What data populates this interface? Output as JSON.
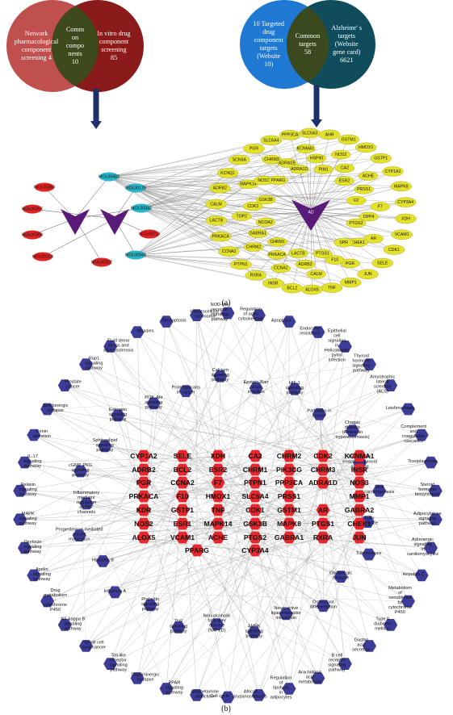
{
  "venn_left": {
    "left": [
      "Network",
      "pharmacological",
      "component",
      "screening 4"
    ],
    "middle": [
      "Comm",
      "on",
      "compo",
      "nents",
      "10"
    ],
    "right": [
      "In vitro drug",
      "component",
      "screening",
      "85"
    ],
    "colors": {
      "left": "#c0504d",
      "right": "#8b1a1a",
      "overlap": "#3e4a1c"
    }
  },
  "venn_right": {
    "left": [
      "10 Targeted",
      "drug",
      "component",
      "targets",
      "(Website",
      "10)"
    ],
    "middle": [
      "Common",
      "targets",
      "58"
    ],
    "right": [
      "Alzheimr' s",
      "targets",
      "(Website",
      "gene card)",
      "6621"
    ],
    "colors": {
      "left": "#1f78d1",
      "right": "#0f4c5c",
      "overlap": "#3b4a1e"
    }
  },
  "panel_a": {
    "label": "(a)",
    "mol_red": [
      {
        "label": "MOL00358"
      },
      {
        "label": "MOL00357"
      },
      {
        "label": "MOL00368"
      },
      {
        "label": "MOL00324"
      },
      {
        "label": "MOL00322"
      },
      {
        "label": "MOL00718"
      }
    ],
    "mol_cyan": [
      {
        "label": "MOL00483"
      },
      {
        "label": "MOL00178"
      },
      {
        "label": "MOL00342"
      },
      {
        "label": "MOL00944"
      }
    ],
    "hubs": [
      "",
      "",
      "AD"
    ],
    "inner_targets": [
      "CHRM3",
      "ADRA1B",
      "ADRA1D",
      "KCNMA1",
      "HSP90",
      "PIM1",
      "NOS2",
      "CA2",
      "ESR2",
      "ACHE",
      "PRSS1",
      "F2",
      "F7",
      "DPP4",
      "PTGS2",
      "AR",
      "CHEK1",
      "SPR",
      "PGR",
      "F10",
      "PTGS1",
      "CALM",
      "ADRB2",
      "LACTB",
      "CCNA2",
      "PRKACA",
      "CHRM1",
      "CHRM2",
      "GABRA1",
      "NCOA2",
      "TOP2",
      "CDK2",
      "GSK3B",
      "MAPK14",
      "NOS3",
      "PPARG"
    ],
    "outer_targets": [
      "SCN5A",
      "PGR",
      "SLC6A4",
      "PPP3CA",
      "SLC6A3",
      "AHR",
      "GSTM1",
      "HMOX1",
      "GSTP1",
      "CYP1A2",
      "MAPK8",
      "CYP3A4",
      "XDH",
      "VCAM1",
      "CDK1",
      "SELE",
      "JUN",
      "MMP1",
      "TNF",
      "ALOX5",
      "BCL2",
      "INSR",
      "RXRA",
      "PTPN1",
      "CCNA2",
      "PRKACA",
      "LACTB",
      "CALM",
      "ADRB2",
      "KCNQ1"
    ]
  },
  "panel_b": {
    "label": "(b)",
    "genes": [
      [
        "CYP1A2",
        "SELE",
        "XDH",
        "CA2",
        "CHRM2",
        "CDK2",
        "KCNMA1"
      ],
      [
        "ADRB2",
        "BCL2",
        "ESR2",
        "CHRM1",
        "PIK3CG",
        "CHRM3",
        "INSR"
      ],
      [
        "PGR",
        "CCNA2",
        "F7",
        "PTPN1",
        "PPP3CA",
        "ADRA1D",
        "NOS3"
      ],
      [
        "PRKACA",
        "F10",
        "HMOX1",
        "SLC6A4",
        "PRSS1",
        "MMP1"
      ],
      [
        "KDR",
        "GSTP1",
        "TNF",
        "CDK1",
        "GSTM1",
        "AR",
        "GABRA2"
      ],
      [
        "NOS2",
        "ESR1",
        "MAPK14",
        "GSK3B",
        "MAPK8",
        "PTGS1",
        "CHEK1"
      ],
      [
        "ALOX5",
        "VCAM1",
        "ACHE",
        "PTGS2",
        "GABRA1",
        "RXRA",
        "JUN"
      ],
      [
        "PPARG",
        "CYP3A4"
      ]
    ],
    "pathways_inner": [
      "Proteoglycans in cancer",
      "Calcium signaling pathway",
      "Epstein-Barr virus infection",
      "HIF-1 signaling pathway",
      "Pathways in cancer",
      "Chagas disease (American trypanosomiasis)",
      "Retrograde endocannabinoid signaling",
      "Viral carcinogenesis",
      "Insulin resistance",
      "Tuberculosis",
      "Cholinergic synapse",
      "Osteoclast differentiation",
      "Neuroactive ligand-receptor interaction",
      "AMPK signaling pathway",
      "Non-alcoholic fatty liver disease (NAFLD)",
      "TNF signaling pathway",
      "Prolactin signaling pathway",
      "Influenza A",
      "Hepatitis B",
      "Progesterone-mediated oocyte maturation",
      "Inflammatory mediator regulation of TRP channels",
      "cGMP-PKG signaling pathway",
      "Sphingolipid signaling pathway",
      "Estrogen signaling pathway",
      "PI3K-Akt signaling pathway"
    ],
    "pathways_outer": [
      "NOD-like receptor signaling pathway",
      "Regulation of actin cytoskeleton",
      "Apoptosis",
      "Endocrine resistance",
      "Epithelial cell signaling in Helicobacter pylori infection",
      "Thyroid hormone signaling pathway",
      "Amyotrophic lateral sclerosis (ALS)",
      "Leishmaniasis",
      "Complement and coagulation cascades",
      "Toxoplasmosis",
      "Steroid hormone biosynthesis",
      "Adipocytokine signaling pathway",
      "Adrenergic signaling in cardiomyocytes",
      "Hepatitis C",
      "Metabolism of xenobiotics by cytochrome P450",
      "Type II diabetes mellitus",
      "Gastric acid secretion",
      "B cell receptor signaling pathway",
      "Arachidonic acid metabolism",
      "Regulation of lipolysis in adipocytes",
      "African trypanosomiasis",
      "Cell cycle",
      "Amphetamine addiction",
      "PPAR signaling pathway",
      "Dopaminergic synapse",
      "Toll-like receptor signaling pathway",
      "Small cell lung cancer",
      "NF-kappa B signaling pathway",
      "Drug metabolism - cytochrome P450",
      "Apelin signaling pathway",
      "Oxytocin signaling pathway",
      "MAPK signaling pathway",
      "Relaxin signaling pathway",
      "IL-17 signaling pathway",
      "Renin secretion",
      "Serotonergic synapse",
      "Prostate cancer",
      "Rap1 signaling pathway",
      "Fluid shear stress and atherosclerosis",
      "Measles",
      "Necroptosis",
      "Hepatocellular carcinoma"
    ],
    "colors": {
      "gene": "#e8262b",
      "pathway": "#3d3d99",
      "edge": "#9a9a9a"
    }
  },
  "arrow_color": "#1f2f6b"
}
